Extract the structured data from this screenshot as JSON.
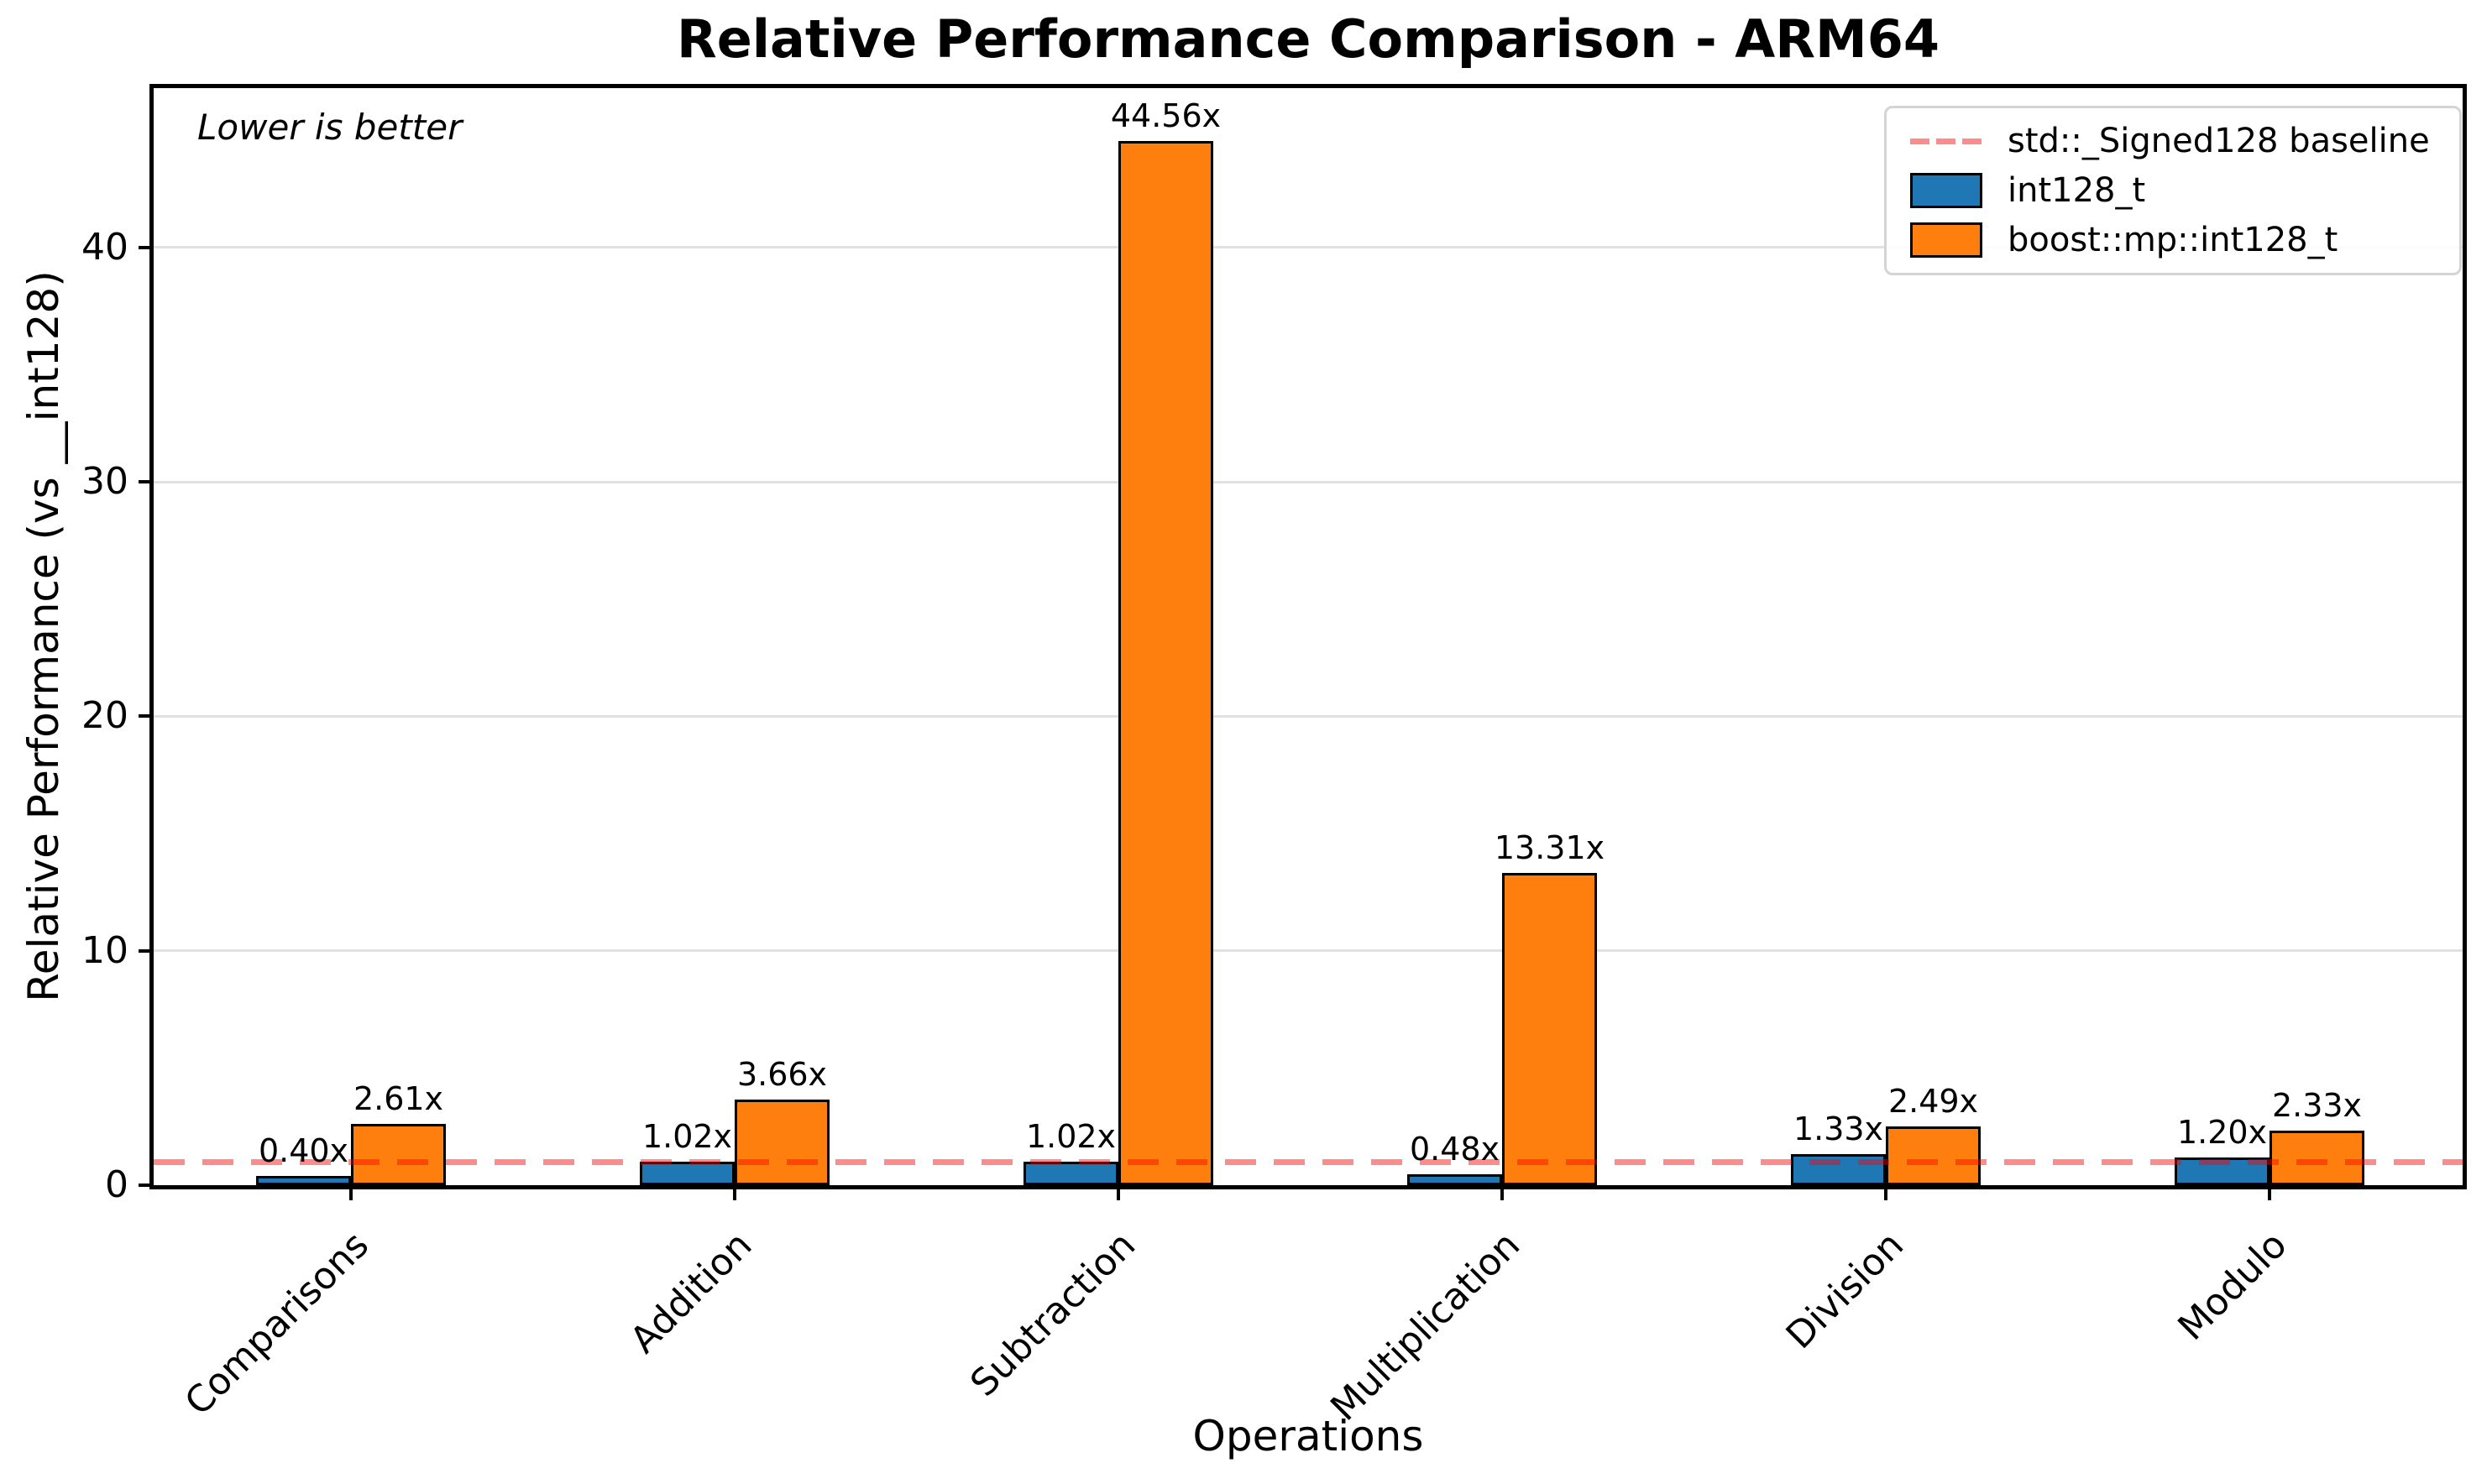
{
  "chart_data": {
    "type": "bar",
    "title": "Relative Performance Comparison - ARM64",
    "xlabel": "Operations",
    "ylabel": "Relative Performance (vs __int128)",
    "annotation": "Lower is better",
    "categories": [
      "Comparisons",
      "Addition",
      "Subtraction",
      "Multiplication",
      "Division",
      "Modulo"
    ],
    "series": [
      {
        "name": "int128_t",
        "color": "#1f77b4",
        "values": [
          0.4,
          1.02,
          1.02,
          0.48,
          1.33,
          1.2
        ]
      },
      {
        "name": "boost::mp::int128_t",
        "color": "#ff7f0e",
        "values": [
          2.61,
          3.66,
          44.56,
          13.31,
          2.49,
          2.33
        ]
      }
    ],
    "value_label_suffix": "x",
    "baseline": {
      "value": 1,
      "label": "std::_Signed128 baseline",
      "color": "rgba(255,0,0,0.45)"
    },
    "bar_edge_color": "#000000",
    "yticks": [
      0,
      10,
      20,
      30,
      40
    ],
    "ylim": [
      0,
      46.8
    ],
    "grid": true,
    "legend_position": "upper right"
  }
}
